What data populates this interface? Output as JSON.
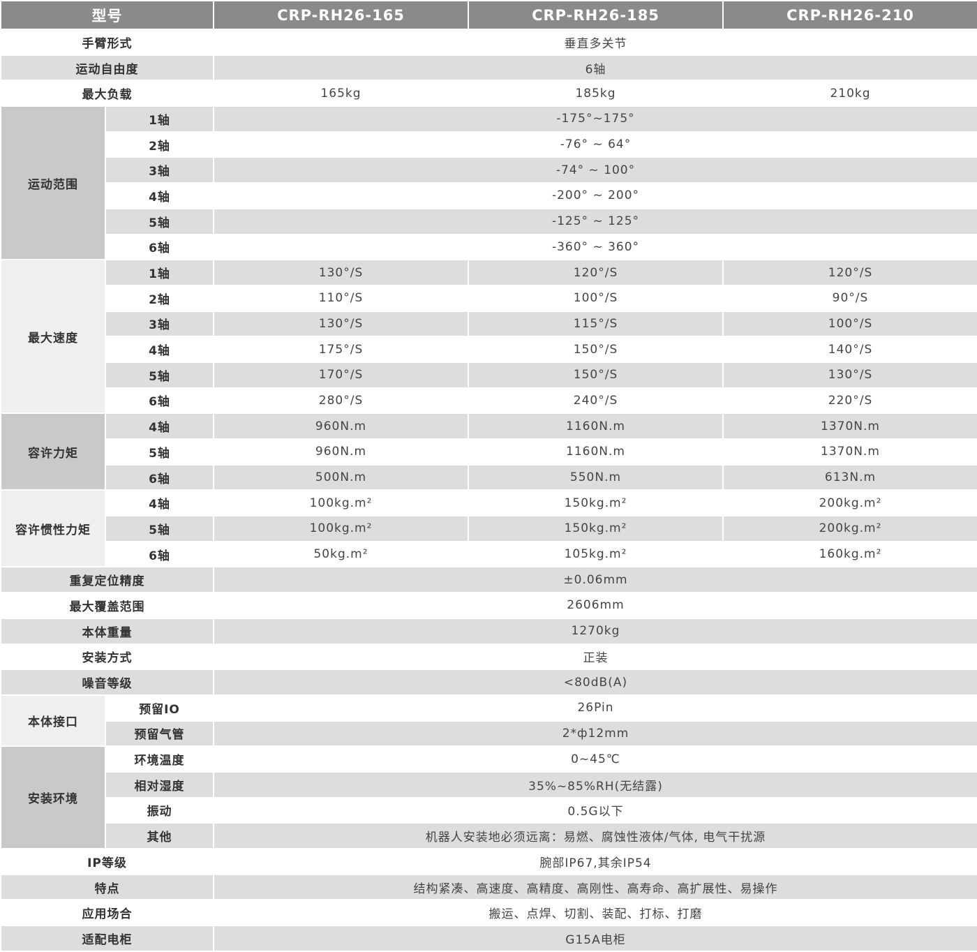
{
  "header": {
    "label": "型号",
    "models": [
      "CRP-RH26-165",
      "CRP-RH26-185",
      "CRP-RH26-210"
    ]
  },
  "colors": {
    "header_bg": "#8a8a8a",
    "row_gray": "#dcdedd",
    "group_dark": "#c9c9c9",
    "group_light": "#eef0ef"
  },
  "sections": [
    {
      "label": "手臂形式",
      "values": [
        "垂直多关节"
      ]
    },
    {
      "label": "运动自由度",
      "values": [
        "6轴"
      ]
    },
    {
      "label": "最大负载",
      "values": [
        "165kg",
        "185kg",
        "210kg"
      ]
    },
    {
      "group": "运动范围",
      "tone": "dark",
      "rows": [
        {
          "label": "1轴",
          "values": [
            "-175°~175°"
          ]
        },
        {
          "label": "2轴",
          "values": [
            "-76° ~ 64°"
          ]
        },
        {
          "label": "3轴",
          "values": [
            "-74° ~ 100°"
          ]
        },
        {
          "label": "4轴",
          "values": [
            "-200° ~ 200°"
          ]
        },
        {
          "label": "5轴",
          "values": [
            "-125° ~ 125°"
          ]
        },
        {
          "label": "6轴",
          "values": [
            "-360° ~ 360°"
          ]
        }
      ]
    },
    {
      "group": "最大速度",
      "tone": "light",
      "rows": [
        {
          "label": "1轴",
          "values": [
            "130°/S",
            "120°/S",
            "120°/S"
          ]
        },
        {
          "label": "2轴",
          "values": [
            "110°/S",
            "100°/S",
            "90°/S"
          ]
        },
        {
          "label": "3轴",
          "values": [
            "130°/S",
            "115°/S",
            "100°/S"
          ]
        },
        {
          "label": "4轴",
          "values": [
            "175°/S",
            "150°/S",
            "140°/S"
          ]
        },
        {
          "label": "5轴",
          "values": [
            "170°/S",
            "150°/S",
            "130°/S"
          ]
        },
        {
          "label": "6轴",
          "values": [
            "280°/S",
            "240°/S",
            "220°/S"
          ]
        }
      ]
    },
    {
      "group": "容许力矩",
      "tone": "dark",
      "rows": [
        {
          "label": "4轴",
          "values": [
            "960N.m",
            "1160N.m",
            "1370N.m"
          ]
        },
        {
          "label": "5轴",
          "values": [
            "960N.m",
            "1160N.m",
            "1370N.m"
          ]
        },
        {
          "label": "6轴",
          "values": [
            "500N.m",
            "550N.m",
            "613N.m"
          ]
        }
      ]
    },
    {
      "group": "容许惯性力矩",
      "tone": "light",
      "rows": [
        {
          "label": "4轴",
          "values": [
            "100kg.m²",
            "150kg.m²",
            "200kg.m²"
          ]
        },
        {
          "label": "5轴",
          "values": [
            "100kg.m²",
            "150kg.m²",
            "200kg.m²"
          ]
        },
        {
          "label": "6轴",
          "values": [
            "50kg.m²",
            "105kg.m²",
            "160kg.m²"
          ]
        }
      ]
    },
    {
      "label": "重复定位精度",
      "values": [
        "±0.06mm"
      ]
    },
    {
      "label": "最大覆盖范围",
      "values": [
        "2606mm"
      ]
    },
    {
      "label": "本体重量",
      "values": [
        "1270kg"
      ]
    },
    {
      "label": "安装方式",
      "values": [
        "正装"
      ]
    },
    {
      "label": "噪音等级",
      "values": [
        "<80dB(A)"
      ]
    },
    {
      "group": "本体接口",
      "tone": "light",
      "rows": [
        {
          "label": "预留IO",
          "values": [
            "26Pin"
          ]
        },
        {
          "label": "预留气管",
          "values": [
            "2*ф12mm"
          ]
        }
      ]
    },
    {
      "group": "安装环境",
      "tone": "dark",
      "rows": [
        {
          "label": "环境温度",
          "values": [
            "0~45℃"
          ]
        },
        {
          "label": "相对湿度",
          "values": [
            "35%~85%RH(无结露)"
          ]
        },
        {
          "label": "振动",
          "values": [
            "0.5G以下"
          ]
        },
        {
          "label": "其他",
          "values": [
            "机器人安装地必须远离：易燃、腐蚀性液体/气体, 电气干扰源"
          ]
        }
      ]
    },
    {
      "label": "IP等级",
      "values": [
        "腕部IP67,其余IP54"
      ]
    },
    {
      "label": "特点",
      "values": [
        "结构紧凑、高速度、高精度、高刚性、高寿命、高扩展性、易操作"
      ]
    },
    {
      "label": "应用场合",
      "values": [
        "搬运、点焊、切割、装配、打标、打磨"
      ]
    },
    {
      "label": "适配电柜",
      "values": [
        "G15A电柜"
      ]
    }
  ]
}
